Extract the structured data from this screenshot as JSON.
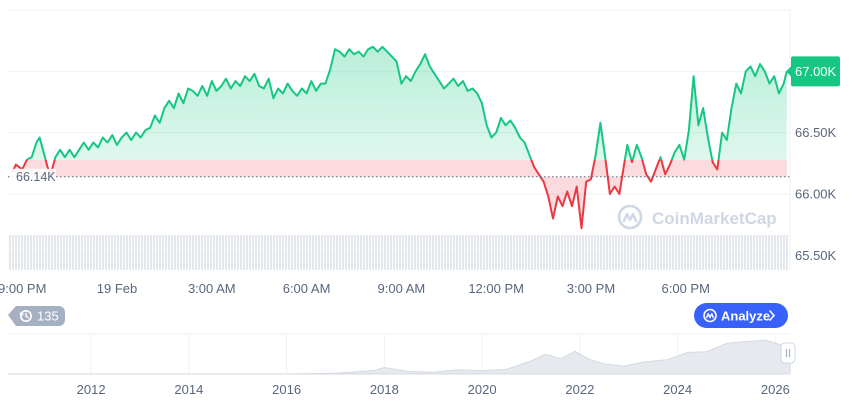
{
  "chart_data": {
    "type": "area",
    "title": "",
    "xlabel": "",
    "ylabel": "",
    "y_axis_side": "right",
    "ylim": [
      65.38,
      67.5
    ],
    "y_ticks": [
      {
        "value": 65.5,
        "label": "65.50K"
      },
      {
        "value": 66.0,
        "label": "66.00K"
      },
      {
        "value": 66.5,
        "label": "66.50K"
      },
      {
        "value": 67.0,
        "label": "67.00K"
      }
    ],
    "x_ticks": [
      {
        "hour": 0,
        "label": "9:00 PM"
      },
      {
        "hour": 3,
        "label": "19 Feb"
      },
      {
        "hour": 6,
        "label": "3:00 AM"
      },
      {
        "hour": 9,
        "label": "6:00 AM"
      },
      {
        "hour": 12,
        "label": "9:00 AM"
      },
      {
        "hour": 15,
        "label": "12:00 PM"
      },
      {
        "hour": 18,
        "label": "3:00 PM"
      },
      {
        "hour": 21,
        "label": "6:00 PM"
      }
    ],
    "x_unit": "hours since 9:00 PM (18 Feb)",
    "baseline": {
      "value": 66.14,
      "label": "66.14K"
    },
    "current": {
      "value": 67.0,
      "label": "67.00K"
    },
    "series": [
      {
        "points": [
          [
            -0.3,
            66.18
          ],
          [
            -0.2,
            66.24
          ],
          [
            0.0,
            66.2
          ],
          [
            0.15,
            66.28
          ],
          [
            0.3,
            66.3
          ],
          [
            0.45,
            66.42
          ],
          [
            0.55,
            66.46
          ],
          [
            0.7,
            66.32
          ],
          [
            0.8,
            66.22
          ],
          [
            0.9,
            66.16
          ],
          [
            1.05,
            66.3
          ],
          [
            1.2,
            66.36
          ],
          [
            1.35,
            66.3
          ],
          [
            1.5,
            66.36
          ],
          [
            1.65,
            66.3
          ],
          [
            1.8,
            66.36
          ],
          [
            1.95,
            66.42
          ],
          [
            2.1,
            66.36
          ],
          [
            2.25,
            66.42
          ],
          [
            2.4,
            66.38
          ],
          [
            2.55,
            66.46
          ],
          [
            2.7,
            66.42
          ],
          [
            2.85,
            66.48
          ],
          [
            3.0,
            66.4
          ],
          [
            3.15,
            66.46
          ],
          [
            3.3,
            66.5
          ],
          [
            3.45,
            66.44
          ],
          [
            3.6,
            66.5
          ],
          [
            3.75,
            66.46
          ],
          [
            3.9,
            66.52
          ],
          [
            4.05,
            66.54
          ],
          [
            4.2,
            66.64
          ],
          [
            4.35,
            66.58
          ],
          [
            4.5,
            66.7
          ],
          [
            4.65,
            66.76
          ],
          [
            4.8,
            66.7
          ],
          [
            4.95,
            66.82
          ],
          [
            5.1,
            66.74
          ],
          [
            5.25,
            66.86
          ],
          [
            5.4,
            66.84
          ],
          [
            5.55,
            66.8
          ],
          [
            5.7,
            66.88
          ],
          [
            5.85,
            66.8
          ],
          [
            6.0,
            66.92
          ],
          [
            6.15,
            66.84
          ],
          [
            6.3,
            66.88
          ],
          [
            6.45,
            66.94
          ],
          [
            6.6,
            66.86
          ],
          [
            6.75,
            66.92
          ],
          [
            6.9,
            66.88
          ],
          [
            7.05,
            66.96
          ],
          [
            7.2,
            66.92
          ],
          [
            7.35,
            66.98
          ],
          [
            7.5,
            66.88
          ],
          [
            7.65,
            66.86
          ],
          [
            7.8,
            66.94
          ],
          [
            7.95,
            66.78
          ],
          [
            8.1,
            66.86
          ],
          [
            8.25,
            66.82
          ],
          [
            8.4,
            66.9
          ],
          [
            8.55,
            66.84
          ],
          [
            8.7,
            66.8
          ],
          [
            8.85,
            66.86
          ],
          [
            9.0,
            66.82
          ],
          [
            9.15,
            66.92
          ],
          [
            9.3,
            66.84
          ],
          [
            9.45,
            66.9
          ],
          [
            9.6,
            66.9
          ],
          [
            9.75,
            67.02
          ],
          [
            9.9,
            67.18
          ],
          [
            10.05,
            67.16
          ],
          [
            10.2,
            67.12
          ],
          [
            10.35,
            67.18
          ],
          [
            10.5,
            67.14
          ],
          [
            10.65,
            67.16
          ],
          [
            10.8,
            67.12
          ],
          [
            10.95,
            67.18
          ],
          [
            11.1,
            67.2
          ],
          [
            11.25,
            67.16
          ],
          [
            11.4,
            67.2
          ],
          [
            11.55,
            67.16
          ],
          [
            11.7,
            67.12
          ],
          [
            11.85,
            67.08
          ],
          [
            12.0,
            66.9
          ],
          [
            12.15,
            66.96
          ],
          [
            12.3,
            66.92
          ],
          [
            12.45,
            67.0
          ],
          [
            12.6,
            67.06
          ],
          [
            12.75,
            67.14
          ],
          [
            12.9,
            67.04
          ],
          [
            13.05,
            66.98
          ],
          [
            13.2,
            66.92
          ],
          [
            13.35,
            66.86
          ],
          [
            13.5,
            66.9
          ],
          [
            13.65,
            66.94
          ],
          [
            13.8,
            66.88
          ],
          [
            13.95,
            66.92
          ],
          [
            14.1,
            66.84
          ],
          [
            14.25,
            66.86
          ],
          [
            14.4,
            66.82
          ],
          [
            14.55,
            66.74
          ],
          [
            14.7,
            66.56
          ],
          [
            14.85,
            66.46
          ],
          [
            15.0,
            66.5
          ],
          [
            15.15,
            66.62
          ],
          [
            15.3,
            66.56
          ],
          [
            15.45,
            66.6
          ],
          [
            15.6,
            66.54
          ],
          [
            15.75,
            66.46
          ],
          [
            15.9,
            66.42
          ],
          [
            16.05,
            66.32
          ],
          [
            16.2,
            66.22
          ],
          [
            16.35,
            66.16
          ],
          [
            16.5,
            66.1
          ],
          [
            16.65,
            65.98
          ],
          [
            16.8,
            65.8
          ],
          [
            16.95,
            65.98
          ],
          [
            17.1,
            65.9
          ],
          [
            17.25,
            66.02
          ],
          [
            17.4,
            65.9
          ],
          [
            17.55,
            66.06
          ],
          [
            17.7,
            65.72
          ],
          [
            17.85,
            66.1
          ],
          [
            18.0,
            66.12
          ],
          [
            18.15,
            66.32
          ],
          [
            18.3,
            66.58
          ],
          [
            18.45,
            66.3
          ],
          [
            18.6,
            66.0
          ],
          [
            18.75,
            66.06
          ],
          [
            18.9,
            66.0
          ],
          [
            19.0,
            66.16
          ],
          [
            19.15,
            66.4
          ],
          [
            19.3,
            66.26
          ],
          [
            19.45,
            66.4
          ],
          [
            19.6,
            66.3
          ],
          [
            19.75,
            66.16
          ],
          [
            19.9,
            66.1
          ],
          [
            20.05,
            66.2
          ],
          [
            20.2,
            66.3
          ],
          [
            20.35,
            66.16
          ],
          [
            20.5,
            66.24
          ],
          [
            20.65,
            66.34
          ],
          [
            20.8,
            66.4
          ],
          [
            20.95,
            66.28
          ],
          [
            21.1,
            66.52
          ],
          [
            21.25,
            66.96
          ],
          [
            21.4,
            66.56
          ],
          [
            21.55,
            66.7
          ],
          [
            21.7,
            66.46
          ],
          [
            21.85,
            66.26
          ],
          [
            22.0,
            66.2
          ],
          [
            22.15,
            66.5
          ],
          [
            22.3,
            66.44
          ],
          [
            22.45,
            66.7
          ],
          [
            22.6,
            66.9
          ],
          [
            22.75,
            66.82
          ],
          [
            22.9,
            67.0
          ],
          [
            23.05,
            67.04
          ],
          [
            23.2,
            66.96
          ],
          [
            23.35,
            67.06
          ],
          [
            23.5,
            67.0
          ],
          [
            23.65,
            66.9
          ],
          [
            23.8,
            66.96
          ],
          [
            23.95,
            66.82
          ],
          [
            24.1,
            66.9
          ],
          [
            24.2,
            67.0
          ]
        ]
      }
    ],
    "volume_summary": "",
    "overview": {
      "years": [
        "2012",
        "2014",
        "2016",
        "2018",
        "2020",
        "2022",
        "2024",
        "2026"
      ],
      "year_start": 2010.3,
      "year_end": 2026.3,
      "points": [
        [
          2010.3,
          0.0
        ],
        [
          2013.0,
          0.0
        ],
        [
          2016.0,
          0.0
        ],
        [
          2017.0,
          0.02
        ],
        [
          2017.8,
          0.1
        ],
        [
          2018.0,
          0.18
        ],
        [
          2018.5,
          0.07
        ],
        [
          2019.0,
          0.05
        ],
        [
          2019.5,
          0.12
        ],
        [
          2020.0,
          0.09
        ],
        [
          2020.5,
          0.13
        ],
        [
          2021.0,
          0.36
        ],
        [
          2021.3,
          0.55
        ],
        [
          2021.6,
          0.42
        ],
        [
          2021.9,
          0.63
        ],
        [
          2022.2,
          0.4
        ],
        [
          2022.5,
          0.28
        ],
        [
          2022.9,
          0.22
        ],
        [
          2023.3,
          0.33
        ],
        [
          2023.8,
          0.4
        ],
        [
          2024.2,
          0.6
        ],
        [
          2024.6,
          0.62
        ],
        [
          2025.0,
          0.85
        ],
        [
          2025.4,
          0.9
        ],
        [
          2025.8,
          0.94
        ],
        [
          2026.0,
          0.86
        ],
        [
          2026.3,
          0.72
        ]
      ]
    }
  },
  "ui": {
    "watermark": "CoinMarketCap",
    "range_badge": "135",
    "analyze_label": "Analyze",
    "pause_icon": "pause-icon",
    "history_icon": "history-clock-icon",
    "chevron_icon": "chevron-right-icon",
    "logo_icon": "coinmarketcap-logo-icon"
  },
  "colors": {
    "up": "#16c784",
    "up_fill_top": "rgba(22,199,132,0.30)",
    "up_fill_bottom": "rgba(22,199,132,0.04)",
    "down": "#ea3943",
    "down_fill": "rgba(234,57,67,0.18)",
    "accent": "#3861fb",
    "grid": "#eff2f5",
    "label": "#58667e",
    "badge_bg": "#a6b0c3"
  }
}
